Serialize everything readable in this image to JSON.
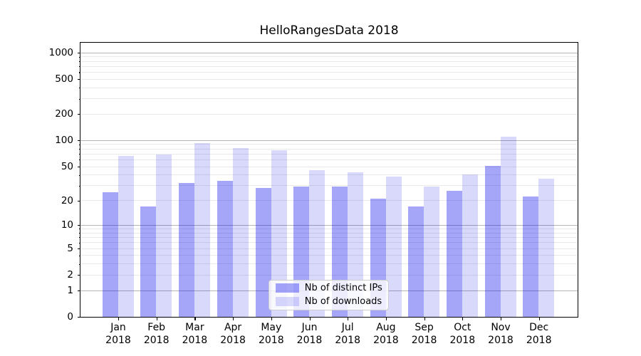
{
  "chart_data": {
    "type": "bar",
    "title": "HelloRangesData 2018",
    "categories": [
      "Jan",
      "Feb",
      "Mar",
      "Apr",
      "May",
      "Jun",
      "Jul",
      "Aug",
      "Sep",
      "Oct",
      "Nov",
      "Dec"
    ],
    "category_year": "2018",
    "series": [
      {
        "name": "Nb of distinct IPs",
        "values": [
          25,
          17,
          32,
          34,
          28,
          29,
          29,
          21,
          17,
          26,
          51,
          22
        ],
        "base_color": "#0000ee",
        "alpha": 0.35,
        "rendered_color": "#a6a6f9"
      },
      {
        "name": "Nb of downloads",
        "values": [
          66,
          69,
          92,
          81,
          76,
          45,
          43,
          38,
          29,
          40,
          110,
          36
        ],
        "base_color": "#0000ee",
        "alpha": 0.15,
        "rendered_color": "#d9d9fc"
      }
    ],
    "yscale": "log1p",
    "ylim": [
      0,
      1297
    ],
    "yticks": [
      1000,
      500,
      200,
      100,
      50,
      20,
      10,
      5,
      2,
      1,
      0
    ],
    "grid": true,
    "legend_position": "lower center",
    "axis_color": "#000000",
    "grid_major_color": "#b5b5b5",
    "grid_minor_color": "#e9e9e9",
    "legend_border_color": "#cccccc",
    "legend_bg_alpha": 0.8
  }
}
